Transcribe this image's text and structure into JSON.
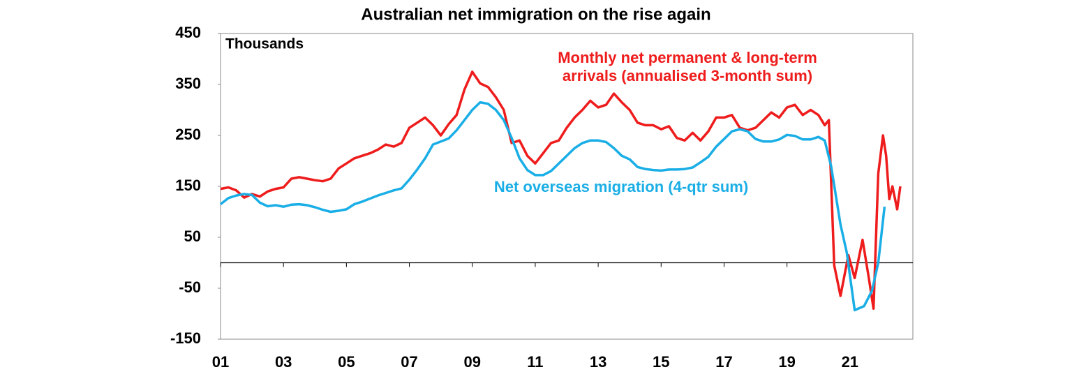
{
  "chart_data": {
    "type": "line",
    "title": "Australian net immigration on the rise again",
    "ylabel": "Thousands",
    "annotations": [
      {
        "text": "Monthly net permanent & long-term",
        "series": 0
      },
      {
        "text": "arrivals (annualised 3-month sum)",
        "series": 0
      },
      {
        "text": "Net overseas migration (4-qtr sum)",
        "series": 1
      }
    ],
    "xlim": [
      1,
      23
    ],
    "xticks": [
      {
        "value": 1,
        "label": "01"
      },
      {
        "value": 3,
        "label": "03"
      },
      {
        "value": 5,
        "label": "05"
      },
      {
        "value": 7,
        "label": "07"
      },
      {
        "value": 9,
        "label": "09"
      },
      11,
      13,
      15,
      17,
      19,
      21
    ],
    "ylim": [
      -150,
      450
    ],
    "yticks": [
      -150,
      -50,
      50,
      150,
      250,
      350,
      450
    ],
    "series": [
      {
        "name": "Monthly net permanent & long-term arrivals (annualised 3-month sum)",
        "color": "#ee1c1c",
        "x": [
          1.0,
          1.25,
          1.5,
          1.75,
          2.0,
          2.25,
          2.5,
          2.75,
          3.0,
          3.25,
          3.5,
          3.75,
          4.0,
          4.25,
          4.5,
          4.75,
          5.0,
          5.25,
          5.5,
          5.75,
          6.0,
          6.25,
          6.5,
          6.75,
          7.0,
          7.25,
          7.5,
          7.75,
          8.0,
          8.25,
          8.5,
          8.75,
          9.0,
          9.25,
          9.5,
          9.75,
          10.0,
          10.25,
          10.5,
          10.75,
          11.0,
          11.25,
          11.5,
          11.75,
          12.0,
          12.25,
          12.5,
          12.75,
          13.0,
          13.25,
          13.5,
          13.75,
          14.0,
          14.25,
          14.5,
          14.75,
          15.0,
          15.25,
          15.5,
          15.75,
          16.0,
          16.25,
          16.5,
          16.75,
          17.0,
          17.25,
          17.5,
          17.75,
          18.0,
          18.25,
          18.5,
          18.75,
          19.0,
          19.25,
          19.5,
          19.75,
          20.0,
          20.2,
          20.33,
          20.5,
          20.7,
          20.95,
          21.15,
          21.4,
          21.6,
          21.75,
          21.9,
          22.05,
          22.15,
          22.25,
          22.35,
          22.5,
          22.6
        ],
        "values": [
          145,
          148,
          142,
          128,
          135,
          130,
          140,
          145,
          148,
          165,
          168,
          165,
          162,
          160,
          165,
          185,
          195,
          205,
          210,
          215,
          222,
          232,
          228,
          235,
          265,
          275,
          285,
          270,
          250,
          272,
          290,
          340,
          375,
          352,
          345,
          325,
          300,
          235,
          240,
          210,
          195,
          215,
          235,
          240,
          265,
          285,
          300,
          318,
          305,
          310,
          332,
          315,
          300,
          275,
          270,
          270,
          262,
          268,
          245,
          240,
          255,
          240,
          258,
          285,
          285,
          290,
          265,
          260,
          265,
          280,
          295,
          285,
          305,
          310,
          290,
          300,
          290,
          270,
          280,
          -5,
          -65,
          15,
          -30,
          45,
          -30,
          -90,
          175,
          250,
          210,
          125,
          150,
          105,
          150
        ]
      },
      {
        "name": "Net overseas migration (4-qtr sum)",
        "color": "#1aaee6",
        "x": [
          1.0,
          1.25,
          1.5,
          1.75,
          2.0,
          2.25,
          2.5,
          2.75,
          3.0,
          3.25,
          3.5,
          3.75,
          4.0,
          4.25,
          4.5,
          4.75,
          5.0,
          5.25,
          5.5,
          5.75,
          6.0,
          6.25,
          6.5,
          6.75,
          7.0,
          7.25,
          7.5,
          7.75,
          8.0,
          8.25,
          8.5,
          8.75,
          9.0,
          9.25,
          9.5,
          9.75,
          10.0,
          10.25,
          10.5,
          10.75,
          11.0,
          11.25,
          11.5,
          11.75,
          12.0,
          12.25,
          12.5,
          12.75,
          13.0,
          13.25,
          13.5,
          13.75,
          14.0,
          14.25,
          14.5,
          14.75,
          15.0,
          15.25,
          15.5,
          15.75,
          16.0,
          16.25,
          16.5,
          16.75,
          17.0,
          17.25,
          17.5,
          17.75,
          18.0,
          18.25,
          18.5,
          18.75,
          19.0,
          19.25,
          19.5,
          19.75,
          20.0,
          20.2,
          20.4,
          20.7,
          20.9,
          21.15,
          21.45,
          21.7,
          21.9,
          22.1
        ],
        "values": [
          115,
          127,
          132,
          135,
          133,
          118,
          111,
          113,
          110,
          114,
          115,
          113,
          109,
          104,
          100,
          102,
          105,
          115,
          120,
          126,
          132,
          137,
          142,
          146,
          163,
          183,
          205,
          232,
          238,
          244,
          260,
          280,
          300,
          315,
          312,
          300,
          280,
          245,
          205,
          182,
          172,
          172,
          180,
          195,
          210,
          225,
          235,
          240,
          240,
          237,
          225,
          210,
          203,
          188,
          184,
          182,
          181,
          183,
          183,
          184,
          187,
          197,
          208,
          228,
          243,
          258,
          262,
          258,
          243,
          238,
          238,
          242,
          251,
          249,
          242,
          242,
          247,
          240,
          190,
          75,
          20,
          -93,
          -85,
          -55,
          0,
          110
        ]
      }
    ]
  }
}
